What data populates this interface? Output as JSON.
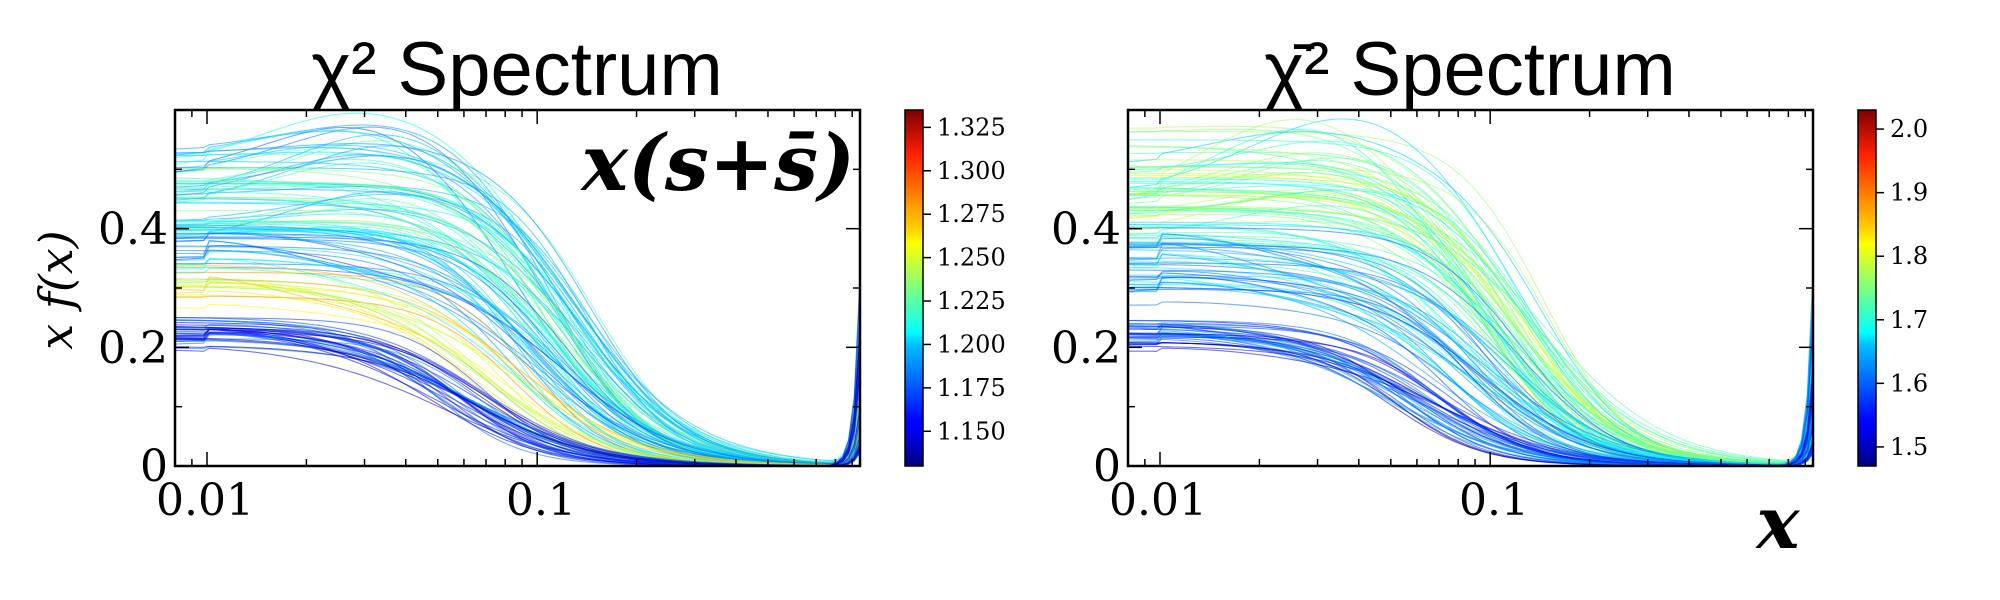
{
  "chart_data": [
    {
      "type": "line",
      "title": "χ² Spectrum",
      "ylabel": "x f(x)",
      "xlabel": "",
      "annotation": "x(s+s̄)",
      "xscale": "log",
      "xlim": [
        0.008,
        0.95
      ],
      "ylim": [
        0,
        0.6
      ],
      "x_ticks": [
        0.01,
        0.1
      ],
      "x_tick_labels": [
        "0.01",
        "0.1"
      ],
      "y_ticks": [
        0,
        0.2,
        0.4
      ],
      "y_tick_labels": [
        "0",
        "0.2",
        "0.4"
      ],
      "colorbar": {
        "colormap": "jet",
        "range": [
          1.13,
          1.335
        ],
        "ticks": [
          1.15,
          1.175,
          1.2,
          1.225,
          1.25,
          1.275,
          1.3,
          1.325
        ],
        "tick_labels": [
          "1.150",
          "1.175",
          "1.200",
          "1.225",
          "1.250",
          "1.275",
          "1.300",
          "1.325"
        ]
      },
      "replica_families": [
        {
          "y_at_0p01": 0.5,
          "peak_y": 0.55,
          "peak_x": 0.035,
          "falloff_x": 0.12,
          "chi2": 1.2,
          "count": 20
        },
        {
          "y_at_0p01": 0.44,
          "peak_y": 0.44,
          "peak_x": 0.04,
          "falloff_x": 0.12,
          "chi2": 1.21,
          "count": 35
        },
        {
          "y_at_0p01": 0.36,
          "peak_y": 0.36,
          "peak_x": 0.01,
          "falloff_x": 0.1,
          "chi2": 1.19,
          "count": 30
        },
        {
          "y_at_0p01": 0.3,
          "peak_y": 0.3,
          "peak_x": 0.01,
          "falloff_x": 0.08,
          "chi2": 1.26,
          "count": 18
        },
        {
          "y_at_0p01": 0.22,
          "peak_y": 0.22,
          "peak_x": 0.01,
          "falloff_x": 0.06,
          "chi2": 1.16,
          "count": 35
        }
      ]
    },
    {
      "type": "line",
      "title": "χ̄² Spectrum",
      "ylabel": "",
      "xlabel": "x",
      "annotation": "",
      "xscale": "log",
      "xlim": [
        0.008,
        0.95
      ],
      "ylim": [
        0,
        0.6
      ],
      "x_ticks": [
        0.01,
        0.1
      ],
      "x_tick_labels": [
        "0.01",
        "0.1"
      ],
      "y_ticks": [
        0,
        0.2,
        0.4
      ],
      "y_tick_labels": [
        "0",
        "0.2",
        "0.4"
      ],
      "colorbar": {
        "colormap": "jet",
        "range": [
          1.47,
          2.03
        ],
        "ticks": [
          1.5,
          1.6,
          1.7,
          1.8,
          1.9,
          2.0
        ],
        "tick_labels": [
          "1.5",
          "1.6",
          "1.7",
          "1.8",
          "1.9",
          "2.0"
        ]
      },
      "replica_families": [
        {
          "y_at_0p01": 0.5,
          "peak_y": 0.55,
          "peak_x": 0.035,
          "falloff_x": 0.12,
          "chi2": 1.72,
          "count": 20
        },
        {
          "y_at_0p01": 0.44,
          "peak_y": 0.44,
          "peak_x": 0.04,
          "falloff_x": 0.12,
          "chi2": 1.74,
          "count": 35
        },
        {
          "y_at_0p01": 0.36,
          "peak_y": 0.36,
          "peak_x": 0.01,
          "falloff_x": 0.1,
          "chi2": 1.66,
          "count": 30
        },
        {
          "y_at_0p01": 0.3,
          "peak_y": 0.3,
          "peak_x": 0.01,
          "falloff_x": 0.08,
          "chi2": 1.62,
          "count": 18
        },
        {
          "y_at_0p01": 0.22,
          "peak_y": 0.22,
          "peak_x": 0.01,
          "falloff_x": 0.06,
          "chi2": 1.56,
          "count": 35
        }
      ]
    }
  ]
}
